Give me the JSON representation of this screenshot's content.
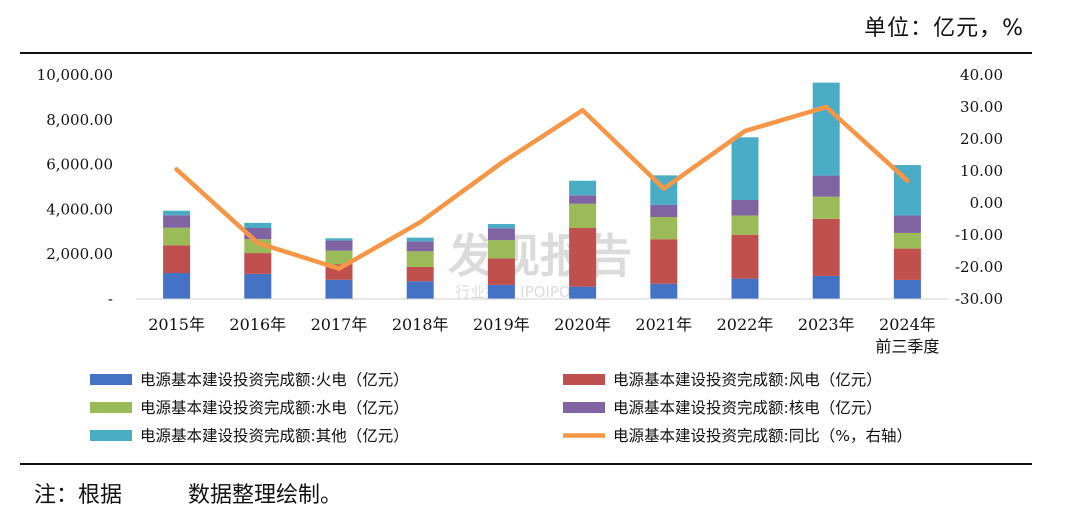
{
  "unit_label": "单位：亿元，%",
  "note": "注：根据　　　数据整理绘制。",
  "watermark": {
    "main": "发现报告",
    "sub": "行业报告 IPOIPO.CN"
  },
  "colors": {
    "thermal": "#4472C4",
    "wind": "#C0504D",
    "hydro": "#9BBB59",
    "nuclear": "#8064A2",
    "other": "#4BACC6",
    "yoy": "#F79646"
  },
  "chart_data": {
    "type": "bar",
    "stacked": true,
    "categories": [
      "2015年",
      "2016年",
      "2017年",
      "2018年",
      "2019年",
      "2020年",
      "2021年",
      "2022年",
      "2023年",
      "2024年|前三季度"
    ],
    "y_left": {
      "min": 0,
      "max": 10000,
      "ticks": [
        "-",
        "2,000.00",
        "4,000.00",
        "6,000.00",
        "8,000.00",
        "10,000.00"
      ],
      "tick_values": [
        0,
        2000,
        4000,
        6000,
        8000,
        10000
      ]
    },
    "y_right": {
      "min": -30,
      "max": 40,
      "ticks": [
        "-30.00",
        "-20.00",
        "-10.00",
        "0.00",
        "10.00",
        "20.00",
        "30.00",
        "40.00"
      ],
      "tick_values": [
        -30,
        -20,
        -10,
        0,
        10,
        20,
        30,
        40
      ]
    },
    "series": [
      {
        "key": "thermal",
        "name": "电源基本建设投资完成额:火电（亿元）",
        "values": [
          1160,
          1120,
          860,
          790,
          630,
          550,
          680,
          910,
          1030,
          850
        ]
      },
      {
        "key": "wind",
        "name": "电源基本建设投资完成额:风电（亿元）",
        "values": [
          1240,
          930,
          680,
          640,
          1180,
          2620,
          1990,
          1960,
          2550,
          1400
        ]
      },
      {
        "key": "hydro",
        "name": "电源基本建设投资完成额:水电（亿元）",
        "values": [
          780,
          620,
          620,
          700,
          820,
          1080,
          990,
          860,
          990,
          700
        ]
      },
      {
        "key": "nuclear",
        "name": "电源基本建设投资完成额:核电（亿元）",
        "values": [
          560,
          500,
          450,
          440,
          530,
          380,
          540,
          690,
          940,
          780
        ]
      },
      {
        "key": "other",
        "name": "电源基本建设投资完成额:其他（亿元）",
        "values": [
          200,
          230,
          100,
          170,
          190,
          650,
          1320,
          2800,
          4150,
          2250
        ]
      }
    ],
    "line": {
      "key": "yoy",
      "name": "电源基本建设投资完成额:同比（%，右轴）",
      "axis": "right",
      "values": [
        10.5,
        -12.5,
        -20.5,
        -6.0,
        12.5,
        29.0,
        4.5,
        22.5,
        30.0,
        7.0
      ]
    }
  }
}
